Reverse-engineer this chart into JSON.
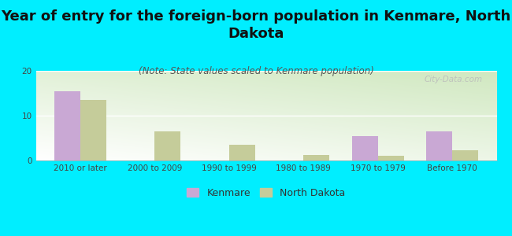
{
  "title": "Year of entry for the foreign-born population in Kenmare, North\nDakota",
  "subtitle": "(Note: State values scaled to Kenmare population)",
  "categories": [
    "2010 or later",
    "2000 to 2009",
    "1990 to 1999",
    "1980 to 1989",
    "1970 to 1979",
    "Before 1970"
  ],
  "kenmare_values": [
    15.5,
    0,
    0,
    0,
    5.5,
    6.5
  ],
  "nd_values": [
    13.5,
    6.5,
    3.5,
    1.2,
    1.0,
    2.2
  ],
  "kenmare_color": "#c9a8d4",
  "nd_color": "#c5cc9a",
  "background_color": "#00eeff",
  "ylim": [
    0,
    20
  ],
  "yticks": [
    0,
    10,
    20
  ],
  "bar_width": 0.35,
  "title_fontsize": 13,
  "subtitle_fontsize": 8.5,
  "tick_fontsize": 7.5,
  "legend_fontsize": 9,
  "watermark": "City-Data.com"
}
